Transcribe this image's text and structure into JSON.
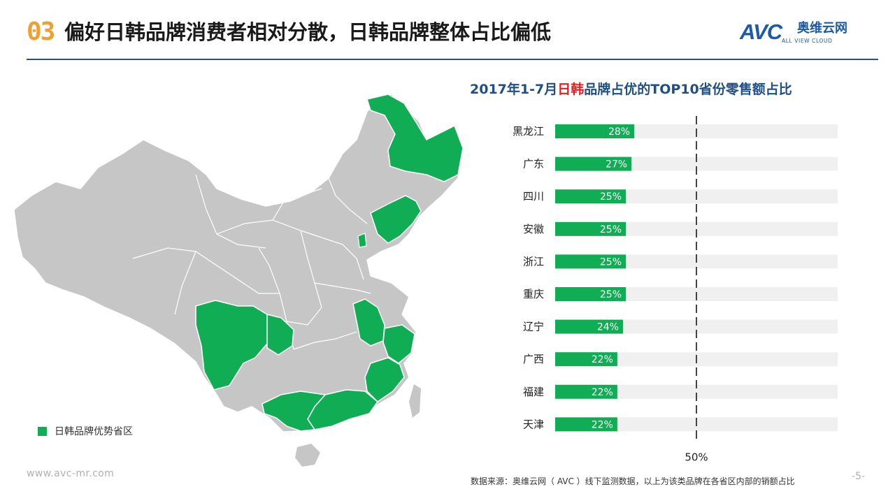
{
  "header": {
    "number": "03",
    "title": "偏好日韩品牌消费者相对分散，日韩品牌整体占比偏低"
  },
  "logo": {
    "mark": "AVC",
    "name_cn": "奥维云网",
    "name_en": "ALL VIEW CLOUD"
  },
  "map": {
    "highlight_color": "#10ad54",
    "base_color": "#c6c6c6",
    "legend_label": "日韩品牌优势省区"
  },
  "chart_data": {
    "type": "bar",
    "orientation": "horizontal",
    "title_parts": [
      "2017年1-7月",
      "日韩",
      "品牌占优的TOP10省份零售额占比"
    ],
    "categories": [
      "黑龙江",
      "广东",
      "四川",
      "安徽",
      "浙江",
      "重庆",
      "辽宁",
      "广西",
      "福建",
      "天津"
    ],
    "values": [
      28,
      27,
      25,
      25,
      25,
      25,
      24,
      22,
      22,
      22
    ],
    "value_labels": [
      "28%",
      "27%",
      "25%",
      "25%",
      "25%",
      "25%",
      "24%",
      "22%",
      "22%",
      "22%"
    ],
    "xlim": [
      0,
      100
    ],
    "reference_line": {
      "value": 50,
      "label": "50%"
    },
    "bar_color": "#10ad54",
    "track_color": "#f0f0f0",
    "title_color": "#1f4f86",
    "highlight_color": "#e02020"
  },
  "footer": {
    "url": "www.avc-mr.com",
    "source": "数据来源：奥维云网（ AVC ）线下监测数据，以上为该类品牌在各省区内部的销额占比",
    "page": "-5-"
  }
}
